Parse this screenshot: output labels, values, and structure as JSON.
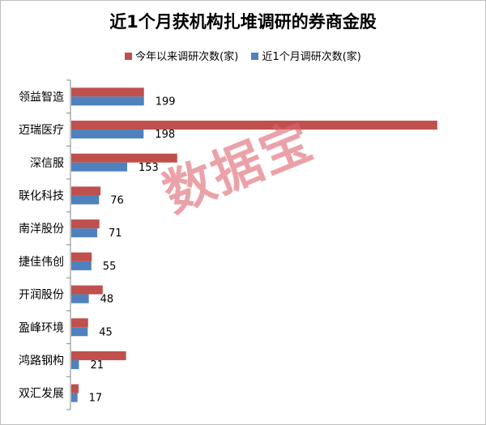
{
  "chart_data": {
    "type": "bar",
    "orientation": "horizontal",
    "title": "近1个月获机构扎堆调研的券商金股",
    "categories": [
      "领益智造",
      "迈瑞医疗",
      "深信服",
      "联化科技",
      "南洋股份",
      "捷佳伟创",
      "开润股份",
      "盈峰环境",
      "鸿路钢构",
      "双汇发展"
    ],
    "series": [
      {
        "name": "今年以来调研次数(家)",
        "color": "#c0504d",
        "values": [
          199,
          1002,
          290,
          80,
          77,
          56,
          86,
          46,
          150,
          20
        ],
        "show_labels": false
      },
      {
        "name": "近1个月调研次数(家)",
        "color": "#4f81bd",
        "values": [
          199,
          198,
          153,
          76,
          71,
          55,
          48,
          45,
          21,
          17
        ],
        "show_labels": true
      }
    ],
    "legend_position": "top",
    "grid": false
  },
  "watermark": "数据宝"
}
